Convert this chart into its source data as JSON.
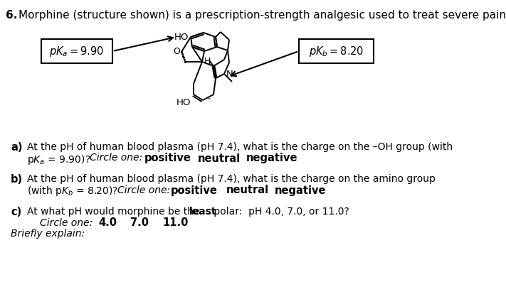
{
  "bg_color": "#ffffff",
  "fig_width": 7.11,
  "fig_height": 3.97,
  "dpi": 100,
  "title_num": "6.",
  "title_rest": "  Morphine (structure shown) is a prescription-strength analgesic used to treat severe pain.",
  "pka_text": "$\\mathit{p}K_a = 9.90$",
  "pkb_text": "$\\mathit{p}K_b = 8.20$",
  "part_a_line1": "At the pH of human blood plasma (pH 7.4), what is the charge on the –OH group (with",
  "part_a_line2_normal": "p",
  "part_a_line2_italic_K": "K",
  "part_a_line2_sub": "a",
  "part_a_line2_rest": " = 9.90)?",
  "part_a_circle": "Circle one:",
  "part_a_choices": [
    "positive",
    "neutral",
    "negative"
  ],
  "part_b_line1": "At the pH of human blood plasma (pH 7.4), what is the charge on the amino group",
  "part_b_line2_rest": "(with p",
  "part_b_circle": "Circle one:",
  "part_b_choices": [
    "positive",
    "neutral",
    "negative"
  ],
  "part_c_line1a": "At what pH would morphine be the ",
  "part_c_bold": "least",
  "part_c_line1b": " polar:  pH 4.0, 7.0, or 11.0?",
  "part_c_circle": "Circle one:",
  "part_c_values": [
    "4.0",
    "7.0",
    "11.0"
  ],
  "briefly": "Briefly explain:",
  "font_family": "DejaVu Sans"
}
